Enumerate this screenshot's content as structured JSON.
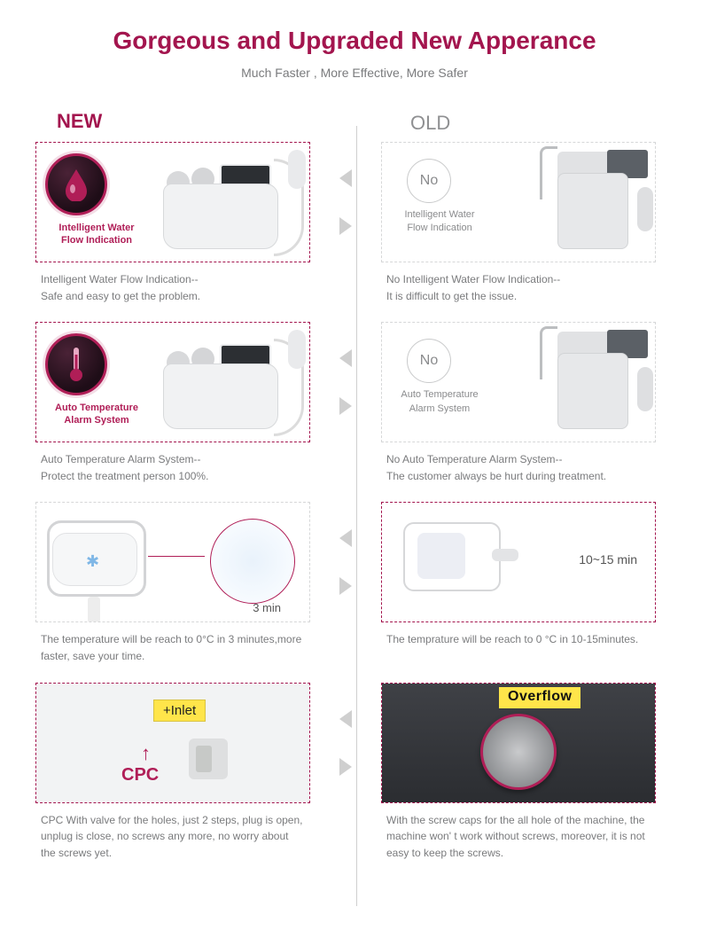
{
  "colors": {
    "accent": "#a3154e",
    "text_muted": "#7a7b7d",
    "text_soft": "#8f9092",
    "border_gray": "#d6d7d8",
    "divider": "#cfcfcf",
    "arrow": "#cfcfcf",
    "highlight_yellow": "#ffe54a",
    "background": "#ffffff"
  },
  "header": {
    "title": "Gorgeous and Upgraded New Apperance",
    "subtitle": "Much Faster , More Effective, More Safer"
  },
  "columns": {
    "new_label": "NEW",
    "old_label": "OLD"
  },
  "rows": [
    {
      "new": {
        "title_line1": "Intelligent Water",
        "title_line2": "Flow Indication",
        "caption": "Intelligent Water Flow Indication--\nSafe and easy to get the problem.",
        "border_color": "#a3154e"
      },
      "old": {
        "badge": "No",
        "title_line1": "Intelligent Water",
        "title_line2": "Flow Indication",
        "caption": "No Intelligent Water Flow Indication--\nIt is difficult to get the issue.",
        "border_color": "#d6d7d8"
      }
    },
    {
      "new": {
        "title_line1": "Auto Temperature",
        "title_line2": "Alarm System",
        "caption": "Auto Temperature Alarm System--\nProtect the treatment person 100%.",
        "border_color": "#a3154e"
      },
      "old": {
        "badge": "No",
        "title_line1": "Auto Temperature",
        "title_line2": "Alarm System",
        "caption": "No Auto Temperature Alarm System--\nThe customer always be hurt during treatment.",
        "border_color": "#d6d7d8"
      }
    },
    {
      "new": {
        "time_label": "3 min",
        "caption": "The temperature will be reach to 0°C in 3 minutes,more faster, save your time.",
        "border_color": "#d6d7d8"
      },
      "old": {
        "time_label": "10~15 min",
        "caption": "The temprature will be reach to 0 °C in 10-15minutes.",
        "border_color": "#a3154e"
      }
    },
    {
      "new": {
        "inlet_tag": "+Inlet",
        "arrow_glyph": "↑",
        "cpc_label": "CPC",
        "caption": "CPC With valve for the holes, just 2 steps, plug is open, unplug is close, no screws any more, no worry about the screws yet.",
        "border_color": "#a3154e"
      },
      "old": {
        "overflow_tag": "Overflow",
        "caption": "With the screw caps for the all hole of the machine, the machine won' t work without screws, moreover, it is not easy to keep the screws.",
        "border_color": "#a3154e"
      }
    }
  ]
}
